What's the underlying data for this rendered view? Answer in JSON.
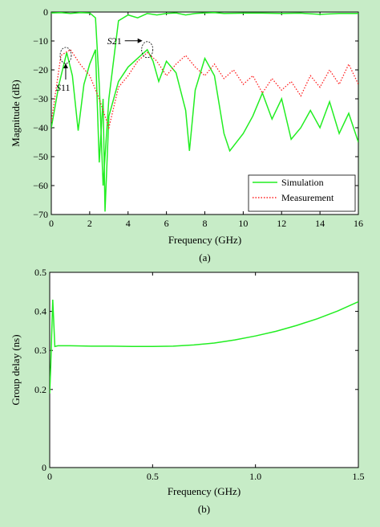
{
  "colors": {
    "background": "#c7ecc7",
    "plot_bg": "#ffffff",
    "simulation": "#22ee22",
    "measurement": "#ff2020"
  },
  "chart_data": [
    {
      "type": "line",
      "panel_label": "(a)",
      "xlabel": "Frequency (GHz)",
      "ylabel": "Magnitude (dB)",
      "xlim": [
        0,
        16
      ],
      "ylim": [
        -70,
        0
      ],
      "xticks": [
        0,
        2,
        4,
        6,
        8,
        10,
        12,
        14,
        16
      ],
      "yticks": [
        0,
        -10,
        -20,
        -30,
        -40,
        -50,
        -60,
        -70
      ],
      "grid": false,
      "legend": {
        "placement": "bottom-right",
        "entries": [
          "Simulation",
          "Measurement"
        ]
      },
      "annotations": [
        {
          "text": "S11",
          "x": 0.75,
          "y": -15
        },
        {
          "text": "S21",
          "x": 5.0,
          "y": -13
        }
      ],
      "series": [
        {
          "name": "Simulation",
          "style": "solid",
          "color": "#22ee22",
          "x": [
            0,
            0.5,
            1.0,
            1.5,
            2.0,
            2.3,
            2.5,
            2.7,
            3.0,
            3.5,
            4.0,
            4.5,
            5.0,
            5.5,
            6.0,
            6.5,
            7.0,
            7.5,
            8.0,
            8.5,
            9.0,
            10.0,
            11.0,
            12.0,
            13.0,
            14.0,
            15.0,
            16.0
          ],
          "y": [
            -0.3,
            -0.2,
            -0.5,
            -0.2,
            -0.3,
            -2,
            -25,
            -60,
            -30,
            -3,
            -1,
            -2,
            -0.5,
            -1,
            -0.5,
            -0.3,
            -1,
            -0.5,
            -0.3,
            -0.2,
            -0.5,
            -0.4,
            -0.4,
            -0.5,
            -0.4,
            -0.8,
            -0.5,
            -0.5
          ]
        },
        {
          "name": "",
          "style": "solid",
          "color": "#22ee22",
          "x": [
            0,
            0.4,
            0.8,
            1.1,
            1.4,
            1.7,
            2.0,
            2.3,
            2.5,
            2.7,
            2.8,
            3.0,
            3.5,
            4.0,
            4.5,
            5.0,
            5.3,
            5.6,
            6.0,
            6.5,
            7.0,
            7.2,
            7.5,
            8.0,
            8.5,
            9.0,
            9.3,
            10.0,
            10.5,
            11.0,
            11.5,
            12.0,
            12.5,
            13.0,
            13.5,
            14.0,
            14.5,
            15.0,
            15.5,
            16.0
          ],
          "y": [
            -40,
            -25,
            -14,
            -22,
            -41,
            -25,
            -18,
            -13,
            -52,
            -30,
            -69,
            -36,
            -24,
            -19,
            -16,
            -13,
            -17,
            -24,
            -17,
            -21,
            -34,
            -48,
            -27,
            -16,
            -22,
            -42,
            -48,
            -42,
            -36,
            -28,
            -37,
            -30,
            -44,
            -40,
            -34,
            -40,
            -31,
            -42,
            -35,
            -45
          ]
        },
        {
          "name": "Measurement",
          "style": "dotted",
          "color": "#ff2020",
          "x": [
            0,
            0.5,
            1.0,
            1.5,
            2.0,
            2.5,
            3.0,
            3.5,
            4.0,
            4.5,
            5.0,
            5.5,
            6.0,
            6.5,
            7.0,
            7.5,
            8.0,
            8.5,
            9.0,
            9.5,
            10.0,
            10.5,
            11.0,
            11.5,
            12.0,
            12.5,
            13.0,
            13.5,
            14.0,
            14.5,
            15.0,
            15.5,
            16.0
          ],
          "y": [
            -38,
            -15,
            -13,
            -18,
            -22,
            -30,
            -40,
            -26,
            -22,
            -17,
            -14,
            -17,
            -22,
            -18,
            -15,
            -19,
            -22,
            -18,
            -23,
            -20,
            -25,
            -22,
            -28,
            -23,
            -27,
            -24,
            -29,
            -22,
            -26,
            -20,
            -25,
            -18,
            -25
          ]
        }
      ]
    },
    {
      "type": "line",
      "panel_label": "(b)",
      "xlabel": "Frequency (GHz)",
      "ylabel": "Group delay (ns)",
      "xlim": [
        0,
        1.5
      ],
      "ylim": [
        0,
        0.5
      ],
      "xticks": [
        0,
        0.5,
        1.0,
        1.5
      ],
      "xtick_labels": [
        "0",
        "0.5",
        "1.0",
        "1.5"
      ],
      "yticks": [
        0,
        0.2,
        0.3,
        0.4,
        0.5
      ],
      "ytick_labels": [
        "0",
        "0.2",
        "0.3",
        "0.4",
        "0.5"
      ],
      "grid": false,
      "series": [
        {
          "name": "",
          "style": "solid",
          "color": "#22ee22",
          "x": [
            0,
            0.005,
            0.01,
            0.015,
            0.02,
            0.025,
            0.04,
            0.1,
            0.2,
            0.3,
            0.4,
            0.5,
            0.6,
            0.7,
            0.8,
            0.9,
            1.0,
            1.1,
            1.2,
            1.3,
            1.4,
            1.5
          ],
          "y": [
            0.19,
            0.26,
            0.35,
            0.43,
            0.37,
            0.31,
            0.312,
            0.312,
            0.311,
            0.311,
            0.31,
            0.31,
            0.311,
            0.314,
            0.319,
            0.327,
            0.337,
            0.349,
            0.364,
            0.381,
            0.401,
            0.425
          ]
        }
      ]
    }
  ]
}
